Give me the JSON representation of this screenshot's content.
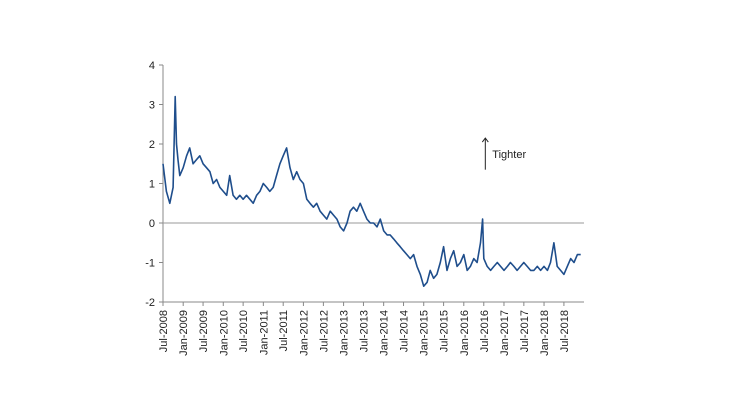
{
  "chart_data": {
    "type": "line",
    "title": "",
    "xlabel": "",
    "ylabel": "",
    "ylim": [
      -2,
      4
    ],
    "xlim": [
      "2008-07-01",
      "2018-12-31"
    ],
    "y_ticks": [
      4,
      3,
      2,
      1,
      0,
      -1,
      -2
    ],
    "x_ticks": [
      "Jul-2008",
      "Jan-2009",
      "Jul-2009",
      "Jan-2010",
      "Jul-2010",
      "Jan-2011",
      "Jul-2011",
      "Jan-2012",
      "Jul-2012",
      "Jan-2013",
      "Jul-2013",
      "Jan-2014",
      "Jul-2014",
      "Jan-2015",
      "Jul-2015",
      "Jan-2016",
      "Jul-2016",
      "Jan-2017",
      "Jul-2017",
      "Jan-2018",
      "Jul-2018"
    ],
    "zero_line": true,
    "grid": false,
    "legend": "none",
    "annotation": {
      "text": "Tighter",
      "direction": "up",
      "date": "2016-07-15",
      "y_from": 1.35,
      "y_to": 2.15
    },
    "series": [
      {
        "color": "#1f4e8c",
        "x": [
          "2008-07-01",
          "2008-08-01",
          "2008-09-01",
          "2008-10-01",
          "2008-10-20",
          "2008-11-01",
          "2008-11-15",
          "2008-12-01",
          "2009-01-01",
          "2009-02-01",
          "2009-03-01",
          "2009-04-01",
          "2009-05-01",
          "2009-06-01",
          "2009-07-01",
          "2009-08-01",
          "2009-09-01",
          "2009-10-01",
          "2009-11-01",
          "2009-12-01",
          "2010-01-01",
          "2010-02-01",
          "2010-03-01",
          "2010-04-01",
          "2010-05-01",
          "2010-06-01",
          "2010-07-01",
          "2010-08-01",
          "2010-09-01",
          "2010-10-01",
          "2010-11-01",
          "2010-12-01",
          "2011-01-01",
          "2011-02-01",
          "2011-03-01",
          "2011-04-01",
          "2011-05-01",
          "2011-06-01",
          "2011-07-01",
          "2011-08-01",
          "2011-09-01",
          "2011-10-01",
          "2011-11-01",
          "2011-12-01",
          "2012-01-01",
          "2012-02-01",
          "2012-03-01",
          "2012-04-01",
          "2012-05-01",
          "2012-06-01",
          "2012-07-01",
          "2012-08-01",
          "2012-09-01",
          "2012-10-01",
          "2012-11-01",
          "2012-12-01",
          "2013-01-01",
          "2013-02-01",
          "2013-03-01",
          "2013-04-01",
          "2013-05-01",
          "2013-06-01",
          "2013-07-01",
          "2013-08-01",
          "2013-09-01",
          "2013-10-01",
          "2013-11-01",
          "2013-12-01",
          "2014-01-01",
          "2014-02-01",
          "2014-03-01",
          "2014-04-01",
          "2014-05-01",
          "2014-06-01",
          "2014-07-01",
          "2014-08-01",
          "2014-09-01",
          "2014-10-01",
          "2014-11-01",
          "2014-12-01",
          "2015-01-01",
          "2015-02-01",
          "2015-03-01",
          "2015-04-01",
          "2015-05-01",
          "2015-06-01",
          "2015-07-01",
          "2015-08-01",
          "2015-09-01",
          "2015-10-01",
          "2015-11-01",
          "2015-12-01",
          "2016-01-01",
          "2016-02-01",
          "2016-03-01",
          "2016-04-01",
          "2016-05-01",
          "2016-06-01",
          "2016-06-20",
          "2016-07-01",
          "2016-08-01",
          "2016-09-01",
          "2016-10-01",
          "2016-11-01",
          "2016-12-01",
          "2017-01-01",
          "2017-02-01",
          "2017-03-01",
          "2017-04-01",
          "2017-05-01",
          "2017-06-01",
          "2017-07-01",
          "2017-08-01",
          "2017-09-01",
          "2017-10-01",
          "2017-11-01",
          "2017-12-01",
          "2018-01-01",
          "2018-02-01",
          "2018-03-01",
          "2018-04-01",
          "2018-05-01",
          "2018-06-01",
          "2018-07-01",
          "2018-08-01",
          "2018-09-01",
          "2018-10-01",
          "2018-11-01",
          "2018-12-01"
        ],
        "y": [
          1.5,
          0.8,
          0.5,
          0.9,
          3.2,
          2.0,
          1.6,
          1.2,
          1.4,
          1.7,
          1.9,
          1.5,
          1.6,
          1.7,
          1.5,
          1.4,
          1.3,
          1.0,
          1.1,
          0.9,
          0.8,
          0.7,
          1.2,
          0.7,
          0.6,
          0.7,
          0.6,
          0.7,
          0.6,
          0.5,
          0.7,
          0.8,
          1.0,
          0.9,
          0.8,
          0.9,
          1.2,
          1.5,
          1.7,
          1.9,
          1.4,
          1.1,
          1.3,
          1.1,
          1.0,
          0.6,
          0.5,
          0.4,
          0.5,
          0.3,
          0.2,
          0.1,
          0.3,
          0.2,
          0.1,
          -0.1,
          -0.2,
          0.0,
          0.3,
          0.4,
          0.3,
          0.5,
          0.3,
          0.1,
          0.0,
          0.0,
          -0.1,
          0.1,
          -0.2,
          -0.3,
          -0.3,
          -0.4,
          -0.5,
          -0.6,
          -0.7,
          -0.8,
          -0.9,
          -0.8,
          -1.1,
          -1.3,
          -1.6,
          -1.5,
          -1.2,
          -1.4,
          -1.3,
          -1.0,
          -0.6,
          -1.2,
          -0.9,
          -0.7,
          -1.1,
          -1.0,
          -0.8,
          -1.2,
          -1.1,
          -0.9,
          -1.0,
          -0.5,
          0.1,
          -0.9,
          -1.1,
          -1.2,
          -1.1,
          -1.0,
          -1.1,
          -1.2,
          -1.1,
          -1.0,
          -1.1,
          -1.2,
          -1.1,
          -1.0,
          -1.1,
          -1.2,
          -1.2,
          -1.1,
          -1.2,
          -1.1,
          -1.2,
          -1.0,
          -0.5,
          -1.1,
          -1.2,
          -1.3,
          -1.1,
          -0.9,
          -1.0,
          -0.8,
          -0.8
        ]
      }
    ]
  }
}
